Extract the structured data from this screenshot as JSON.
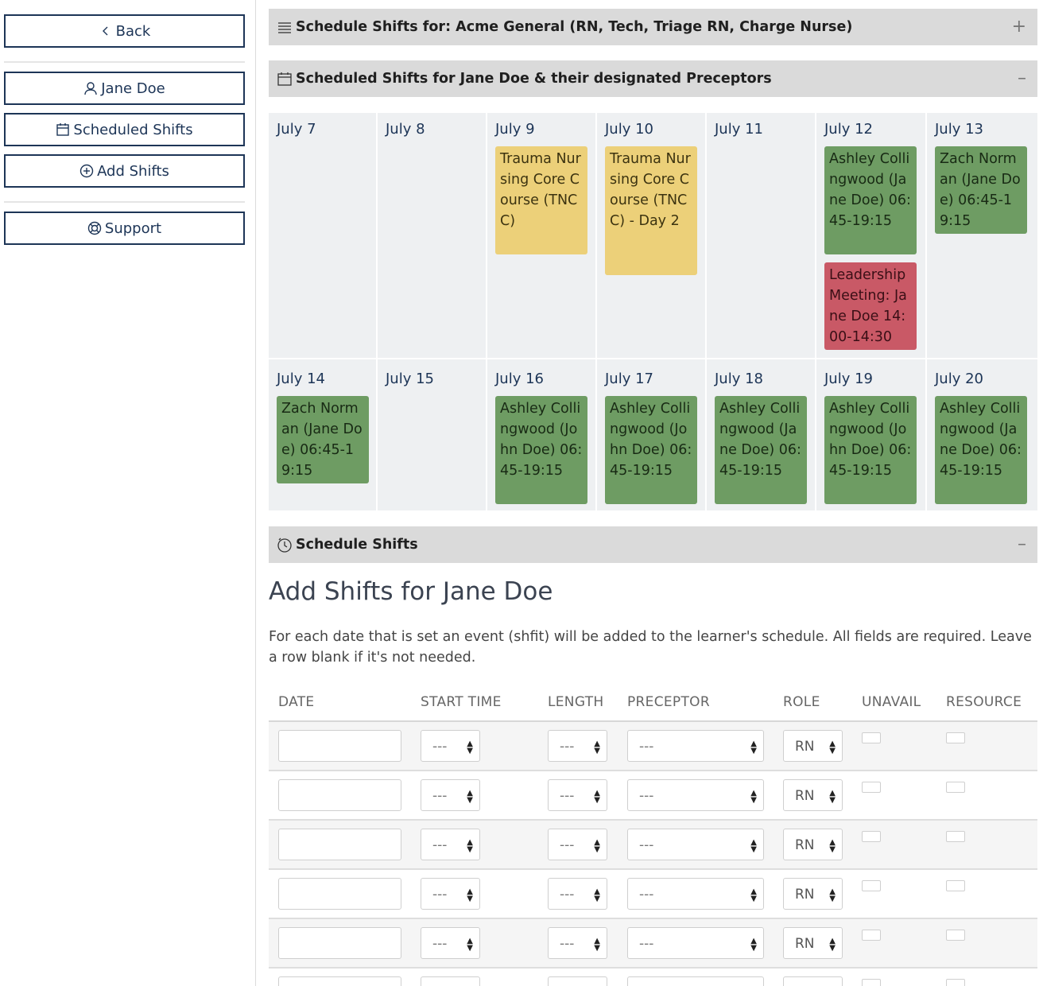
{
  "sidebar": {
    "back": "Back",
    "user": "Jane Doe",
    "scheduled": "Scheduled Shifts",
    "add": "Add Shifts",
    "support": "Support"
  },
  "panels": {
    "schedule_for": "Schedule Shifts for: Acme General (RN, Tech, Triage RN, Charge Nurse)",
    "scheduled_for": "Scheduled Shifts for Jane Doe & their designated Preceptors",
    "schedule_shifts": "Schedule Shifts",
    "plus": "+",
    "minus": "–"
  },
  "calendar": {
    "week1": {
      "d1": "July 7",
      "d2": "July 8",
      "d3": "July 9",
      "d4": "July 10",
      "d5": "July 11",
      "d6": "July 12",
      "d7": "July 13",
      "e3": "Trauma Nursing Core Course (TNCC)",
      "e4": "Trauma Nursing Core Course (TNCC) - Day 2",
      "e6a": "Ashley Collingwood (Jane Doe) 06:45-19:15",
      "e6b": "Leadership Meeting: Jane Doe 14:00-14:30",
      "e7": "Zach Norman (Jane Doe) 06:45-19:15"
    },
    "week2": {
      "d1": "July 14",
      "d2": "July 15",
      "d3": "July 16",
      "d4": "July 17",
      "d5": "July 18",
      "d6": "July 19",
      "d7": "July 20",
      "e1": "Zach Norman (Jane Doe) 06:45-19:15",
      "e3": "Ashley Collingwood (John Doe) 06:45-19:15",
      "e4": "Ashley Collingwood (John Doe) 06:45-19:15",
      "e5": "Ashley Collingwood (Jane Doe) 06:45-19:15",
      "e6": "Ashley Collingwood (John Doe) 06:45-19:15",
      "e7": "Ashley Collingwood (Jane Doe) 06:45-19:15"
    },
    "colors": {
      "preceptor_shift": "#6e9c63",
      "course": "#ecd079",
      "meeting": "#c95966"
    }
  },
  "form": {
    "title": "Add Shifts for Jane Doe",
    "intro": "For each date that is set an event (shfit) will be added to the learner's schedule. All fields are required. Leave a row blank if it's not needed.",
    "headers": {
      "date": "DATE",
      "start": "START TIME",
      "length": "LENGTH",
      "preceptor": "PRECEPTOR",
      "role": "ROLE",
      "unavail": "UNAVAIL",
      "resource": "RESOURCE"
    },
    "defaults": {
      "start": "---",
      "length": "---",
      "preceptor": "---",
      "role": "RN"
    }
  }
}
